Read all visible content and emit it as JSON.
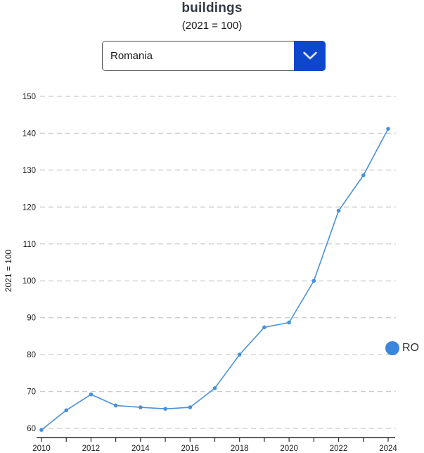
{
  "header": {
    "title": "buildings",
    "subtitle": "(2021 = 100)"
  },
  "country_select": {
    "value": "Romania",
    "chevron_icon": "chevron-down",
    "button_color": "#0e47cb"
  },
  "legend": {
    "label": "RO",
    "color": "#3c85dc"
  },
  "chart_data": {
    "type": "line",
    "title": "buildings",
    "subtitle": "(2021 = 100)",
    "x": [
      2010,
      2011,
      2012,
      2013,
      2014,
      2015,
      2016,
      2017,
      2018,
      2019,
      2020,
      2021,
      2022,
      2023,
      2024
    ],
    "series": [
      {
        "name": "RO",
        "values": [
          59.6,
          64.9,
          69.2,
          66.2,
          65.7,
          65.3,
          65.7,
          70.9,
          80.0,
          87.4,
          88.7,
          100.0,
          119.0,
          128.6,
          141.2
        ]
      }
    ],
    "xlabel": "",
    "ylabel": "2021 = 100",
    "ylim": [
      60,
      150
    ],
    "y_ticks": [
      60,
      70,
      80,
      90,
      100,
      110,
      120,
      130,
      140,
      150
    ],
    "x_tick_labels": [
      2010,
      2012,
      2014,
      2016,
      2018,
      2020,
      2022,
      2024
    ],
    "grid": "dashed",
    "grid_color": "#cccccc",
    "axis_color": "#2b2b2b",
    "tick_label_color": "#1a1a1a",
    "line_color": "#4a90d9",
    "legend_position": "right"
  }
}
